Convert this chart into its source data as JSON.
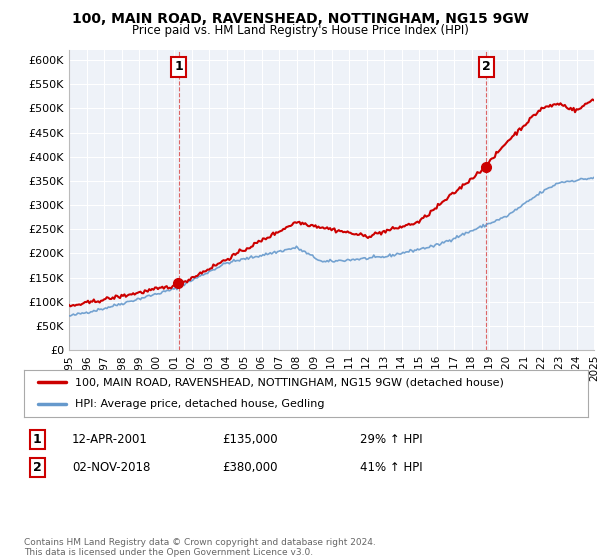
{
  "title": "100, MAIN ROAD, RAVENSHEAD, NOTTINGHAM, NG15 9GW",
  "subtitle": "Price paid vs. HM Land Registry's House Price Index (HPI)",
  "ylim": [
    0,
    620000
  ],
  "yticks": [
    0,
    50000,
    100000,
    150000,
    200000,
    250000,
    300000,
    350000,
    400000,
    450000,
    500000,
    550000,
    600000
  ],
  "ytick_labels": [
    "£0",
    "£50K",
    "£100K",
    "£150K",
    "£200K",
    "£250K",
    "£300K",
    "£350K",
    "£400K",
    "£450K",
    "£500K",
    "£550K",
    "£600K"
  ],
  "background_color": "#ffffff",
  "plot_bg_color": "#eef2f8",
  "grid_color": "#ffffff",
  "hpi_color": "#6699cc",
  "price_color": "#cc0000",
  "marker_color": "#cc0000",
  "sale1_year": 2001.28,
  "sale1_price": 135000,
  "sale1_label": "1",
  "sale2_year": 2018.84,
  "sale2_price": 380000,
  "sale2_label": "2",
  "legend_line1": "100, MAIN ROAD, RAVENSHEAD, NOTTINGHAM, NG15 9GW (detached house)",
  "legend_line2": "HPI: Average price, detached house, Gedling",
  "annot1": "12-APR-2001",
  "annot1_price": "£135,000",
  "annot1_hpi": "29% ↑ HPI",
  "annot2": "02-NOV-2018",
  "annot2_price": "£380,000",
  "annot2_hpi": "41% ↑ HPI",
  "copyright": "Contains HM Land Registry data © Crown copyright and database right 2024.\nThis data is licensed under the Open Government Licence v3.0.",
  "xstart": 1995,
  "xend": 2025
}
